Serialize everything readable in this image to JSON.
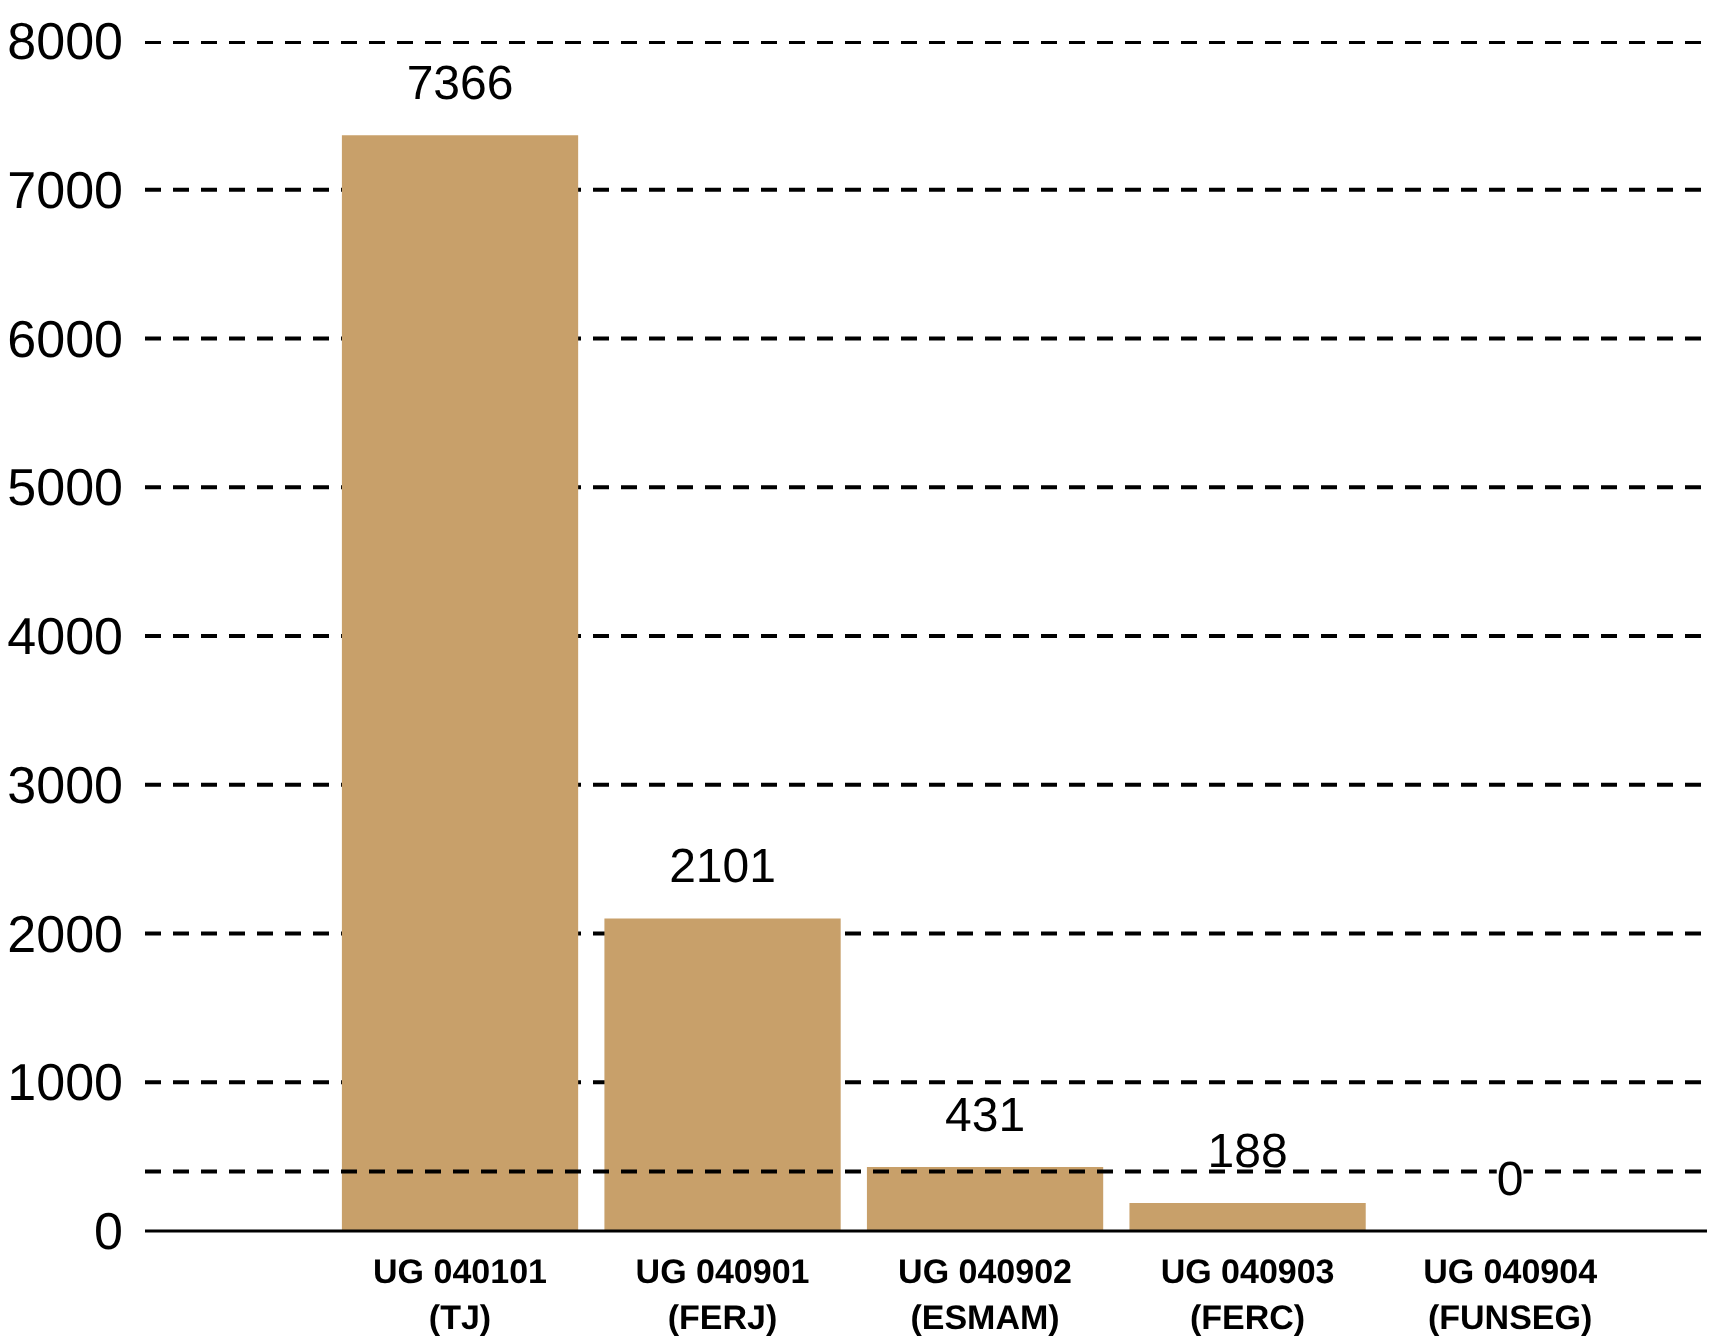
{
  "chart_data": {
    "type": "bar",
    "categories": [
      "UG 040101\n(TJ)",
      "UG 040901\n(FERJ)",
      "UG 040902\n(ESMAM)",
      "UG 040903\n(FERC)",
      "UG 040904\n(FUNSEG)"
    ],
    "values": [
      7366,
      2101,
      431,
      188,
      0
    ],
    "color": "#c8a06a",
    "ylim": [
      0,
      8000
    ],
    "yticks": [
      0,
      1000,
      2000,
      3000,
      4000,
      5000,
      6000,
      7000,
      8000
    ],
    "grid": "y",
    "data_labels": true,
    "ref_lines": [
      {
        "axis": "y",
        "value": 400,
        "line_style": "dashed"
      }
    ]
  }
}
